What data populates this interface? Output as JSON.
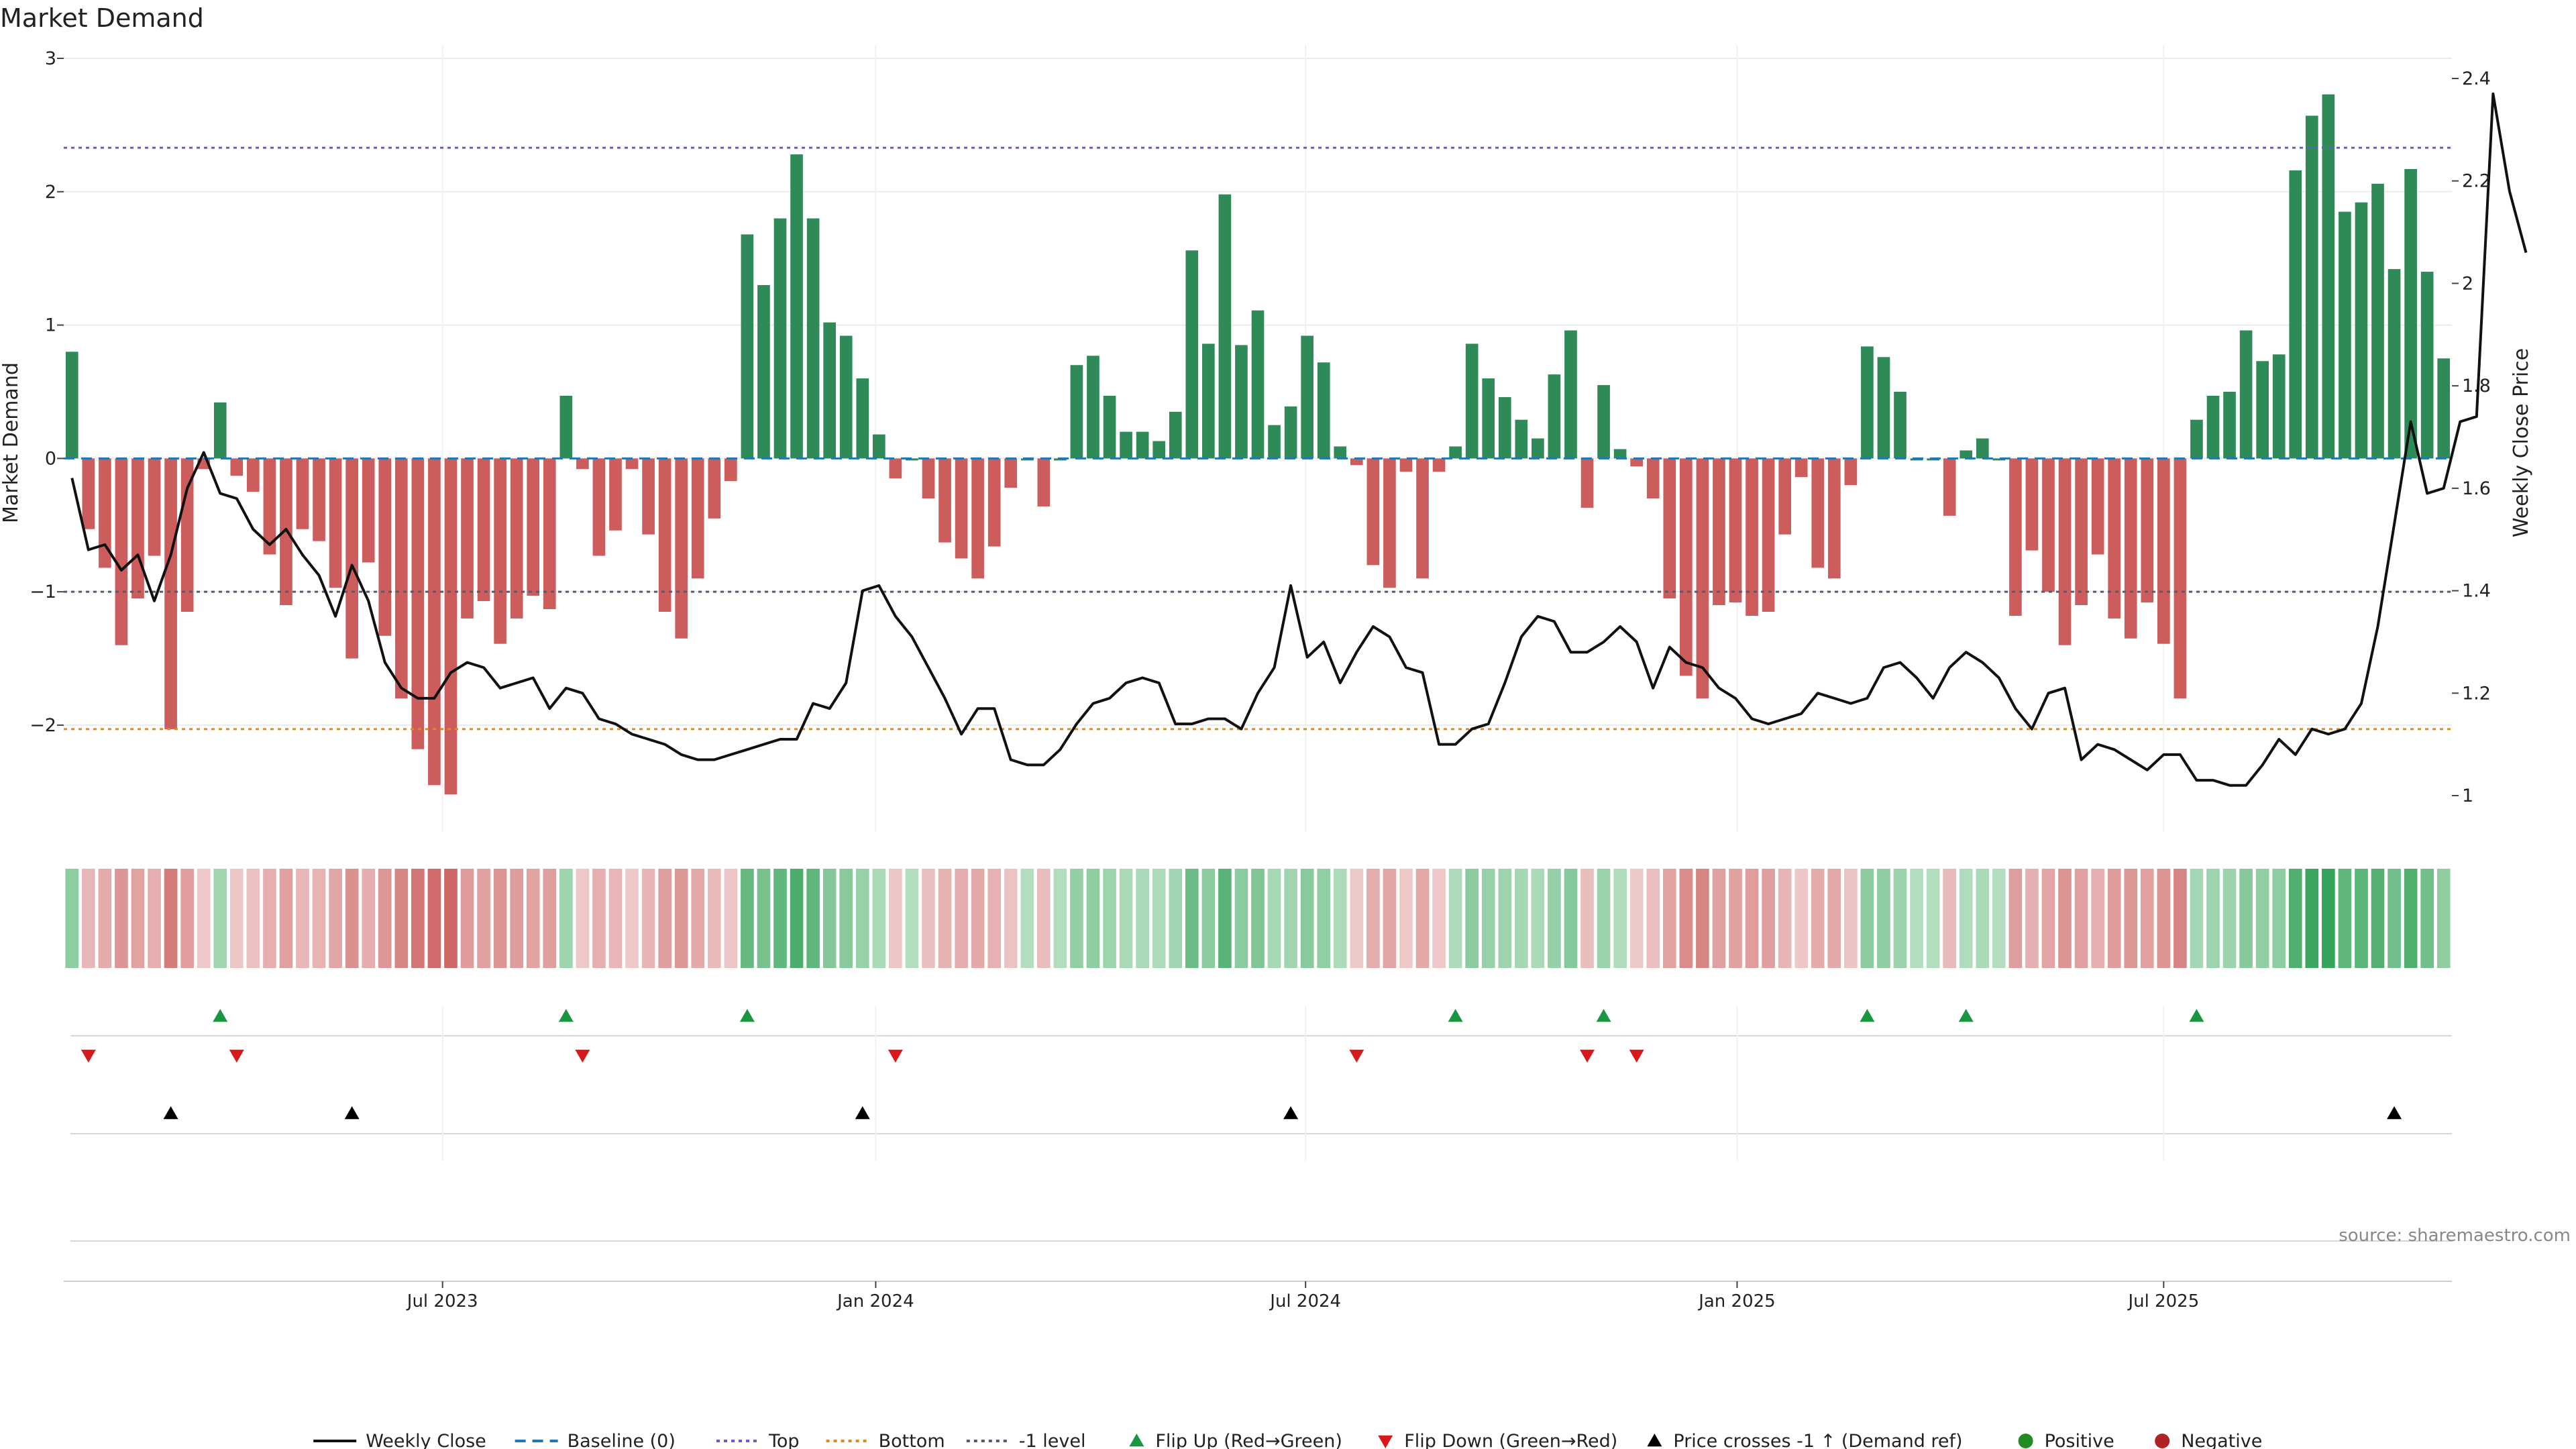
{
  "title": "Market Demand",
  "source": "source: sharemaestro.com",
  "colors": {
    "positive": "#2e8b57",
    "negative": "#cd5c5c",
    "price": "#111111",
    "baseline": "#1f77b4",
    "top": "#6a5acd",
    "bottom": "#e08a1e",
    "neg1": "#555b6e",
    "flip_up": "#1a9641",
    "flip_down": "#d7191c",
    "cross": "#000000",
    "dot_positive": "#228b22",
    "dot_negative": "#b22222"
  },
  "legend": [
    {
      "label": "Weekly Close",
      "icon": "solid-line"
    },
    {
      "label": "Baseline (0)",
      "icon": "dashed-line"
    },
    {
      "label": "Top",
      "icon": "dotted-line"
    },
    {
      "label": "Bottom",
      "icon": "dotted-line"
    },
    {
      "label": "-1 level",
      "icon": "dotted-line"
    },
    {
      "label": "Flip Up (Red→Green)",
      "icon": "triangle-up"
    },
    {
      "label": "Flip Down (Green→Red)",
      "icon": "triangle-down"
    },
    {
      "label": "Price crosses -1 ↑ (Demand ref)",
      "icon": "triangle-up"
    },
    {
      "label": "Positive",
      "icon": "circle"
    },
    {
      "label": "Negative",
      "icon": "circle"
    }
  ],
  "chart_data": {
    "type": "bar",
    "title": "Market Demand",
    "ylabel": "Market Demand",
    "y2label": "Weekly Close Price",
    "ylim": [
      -2.8,
      3
    ],
    "y2lim": [
      0.96,
      2.44
    ],
    "yticks": [
      3,
      2,
      1,
      0,
      -1,
      -2
    ],
    "y2ticks": [
      2.4,
      2.2,
      2,
      1.8,
      1.6,
      1.4,
      1.2,
      1
    ],
    "xtick_labels": [
      "Jul 2023",
      "Jan 2024",
      "Jul 2024",
      "Jan 2025",
      "Jul 2025"
    ],
    "xtick_weeks": [
      22.5,
      48.8,
      74.9,
      101.1,
      127
    ],
    "reference_lines": {
      "baseline": 0,
      "top": 2.33,
      "bottom": -2.03,
      "minus_one": -1
    },
    "demand": [
      0.8,
      -0.53,
      -0.82,
      -1.4,
      -1.05,
      -0.73,
      -2.03,
      -1.15,
      -0.08,
      0.42,
      -0.13,
      -0.25,
      -0.72,
      -1.1,
      -0.53,
      -0.62,
      -0.97,
      -1.5,
      -0.78,
      -1.33,
      -1.8,
      -2.18,
      -2.45,
      -2.52,
      -1.2,
      -1.07,
      -1.39,
      -1.2,
      -1.03,
      -1.13,
      0.47,
      -0.08,
      -0.73,
      -0.54,
      -0.08,
      -0.57,
      -1.15,
      -1.35,
      -0.9,
      -0.45,
      -0.17,
      1.68,
      1.3,
      1.8,
      2.28,
      1.8,
      1.02,
      0.92,
      0.6,
      0.18,
      -0.15,
      0,
      -0.3,
      -0.63,
      -0.75,
      -0.9,
      -0.66,
      -0.22,
      0,
      -0.36,
      0,
      0.7,
      0.77,
      0.47,
      0.2,
      0.2,
      0.13,
      0.35,
      1.56,
      0.86,
      1.98,
      0.85,
      1.11,
      0.25,
      0.39,
      0.92,
      0.72,
      0.09,
      -0.05,
      -0.8,
      -0.97,
      -0.1,
      -0.9,
      -0.1,
      0.09,
      0.86,
      0.6,
      0.46,
      0.29,
      0.15,
      0.63,
      0.96,
      -0.37,
      0.55,
      0.07,
      -0.06,
      -0.3,
      -1.05,
      -1.63,
      -1.8,
      -1.1,
      -1.08,
      -1.18,
      -1.15,
      -0.57,
      -0.14,
      -0.82,
      -0.9,
      -0.2,
      0.84,
      0.76,
      0.5,
      0,
      0,
      -0.43,
      0.06,
      0.15,
      0,
      -1.18,
      -0.69,
      -1.0,
      -1.4,
      -1.1,
      -0.72,
      -1.2,
      -1.35,
      -1.08,
      -1.39,
      -1.8,
      0.29,
      0.47,
      0.5,
      0.96,
      0.73,
      0.78,
      2.16,
      2.57,
      2.73,
      1.85,
      1.92,
      2.06,
      1.42,
      2.17,
      1.4,
      0.75
    ],
    "price": [
      1.62,
      1.48,
      1.49,
      1.44,
      1.47,
      1.38,
      1.47,
      1.6,
      1.67,
      1.59,
      1.58,
      1.52,
      1.49,
      1.52,
      1.47,
      1.43,
      1.35,
      1.45,
      1.38,
      1.26,
      1.21,
      1.19,
      1.19,
      1.24,
      1.26,
      1.25,
      1.21,
      1.22,
      1.23,
      1.17,
      1.21,
      1.2,
      1.15,
      1.14,
      1.12,
      1.11,
      1.1,
      1.08,
      1.07,
      1.07,
      1.08,
      1.09,
      1.1,
      1.11,
      1.11,
      1.18,
      1.17,
      1.22,
      1.4,
      1.41,
      1.35,
      1.31,
      1.25,
      1.19,
      1.12,
      1.17,
      1.17,
      1.07,
      1.06,
      1.06,
      1.09,
      1.14,
      1.18,
      1.19,
      1.22,
      1.23,
      1.22,
      1.14,
      1.14,
      1.15,
      1.15,
      1.13,
      1.2,
      1.25,
      1.41,
      1.27,
      1.3,
      1.22,
      1.28,
      1.33,
      1.31,
      1.25,
      1.24,
      1.1,
      1.1,
      1.13,
      1.14,
      1.22,
      1.31,
      1.35,
      1.34,
      1.28,
      1.28,
      1.3,
      1.33,
      1.3,
      1.21,
      1.29,
      1.26,
      1.25,
      1.21,
      1.19,
      1.15,
      1.14,
      1.15,
      1.16,
      1.2,
      1.19,
      1.18,
      1.19,
      1.25,
      1.26,
      1.23,
      1.19,
      1.25,
      1.28,
      1.26,
      1.23,
      1.17,
      1.13,
      1.2,
      1.21,
      1.07,
      1.1,
      1.09,
      1.07,
      1.05,
      1.08,
      1.08,
      1.03,
      1.03,
      1.02,
      1.02,
      1.06,
      1.11,
      1.08,
      1.13,
      1.12,
      1.13,
      1.18,
      1.33,
      1.53,
      1.73,
      1.59,
      1.6,
      1.73,
      1.74,
      2.37,
      2.18,
      2.06
    ]
  }
}
